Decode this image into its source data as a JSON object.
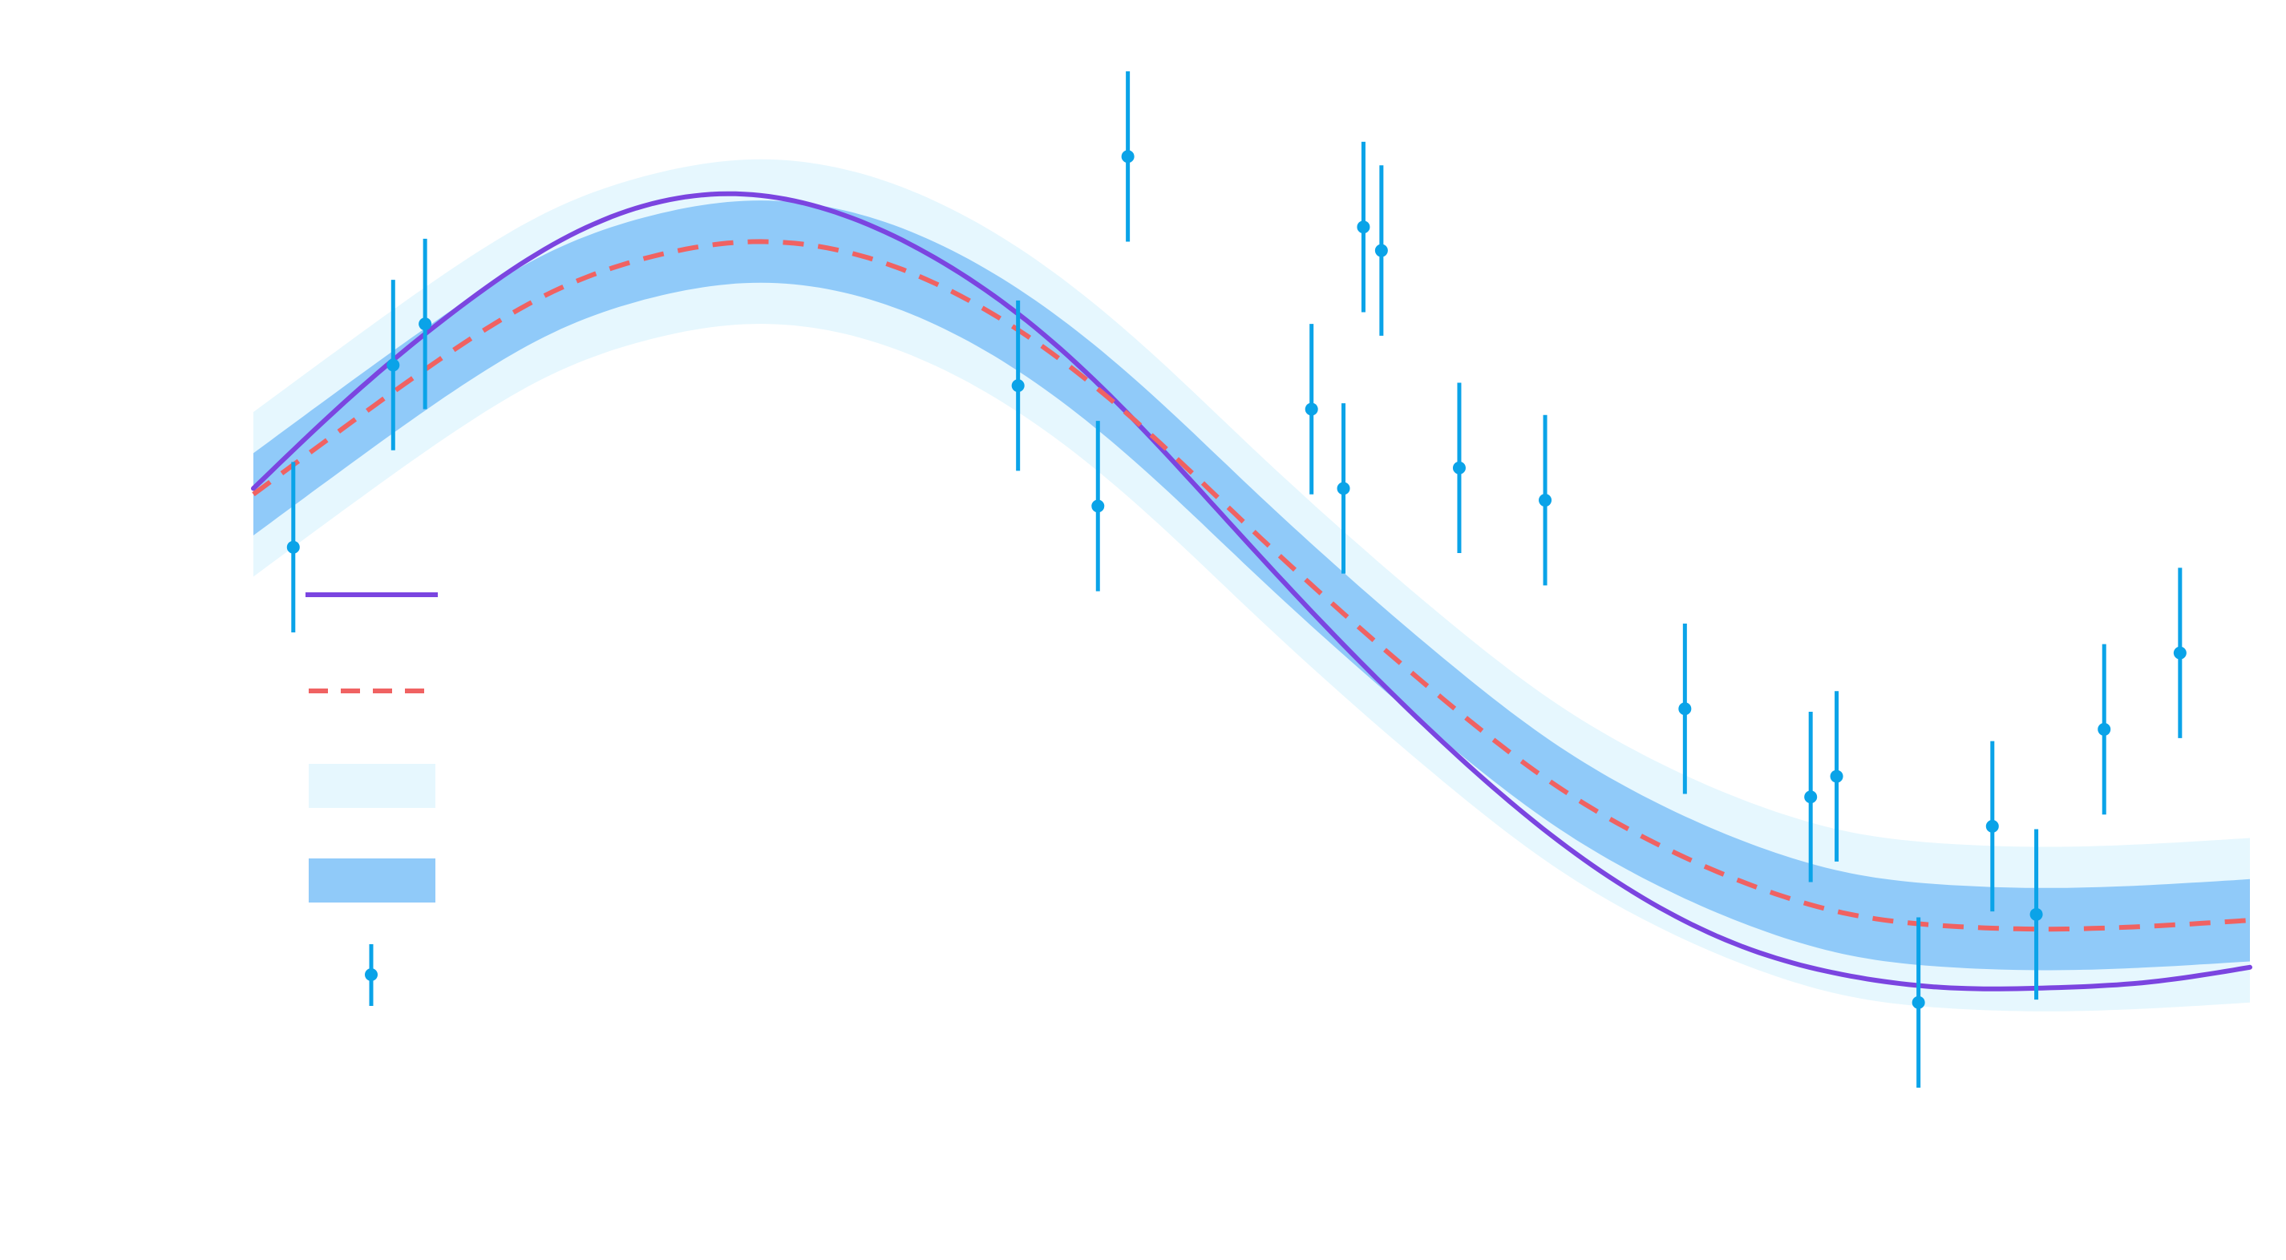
{
  "chart_data": {
    "type": "line",
    "title": "",
    "xlabel": "",
    "ylabel": "",
    "xlim": [
      0,
      10
    ],
    "ylim": [
      -2.4,
      1.6
    ],
    "grid": false,
    "legend": {
      "placement": "middle-left",
      "entries": [
        "",
        "",
        "",
        "",
        ""
      ]
    },
    "true_function": {
      "x": [
        0.0,
        0.5,
        1.0,
        1.5,
        2.0,
        2.5,
        3.0,
        3.5,
        4.0,
        4.5,
        5.0,
        5.5,
        6.0,
        6.5,
        7.0,
        7.5,
        8.0,
        8.5,
        9.0,
        9.5,
        10.0
      ],
      "y": [
        0.0,
        0.32,
        0.6,
        0.83,
        0.97,
        1.0,
        0.92,
        0.75,
        0.5,
        0.17,
        -0.2,
        -0.56,
        -0.89,
        -1.18,
        -1.41,
        -1.57,
        -1.66,
        -1.7,
        -1.7,
        -1.68,
        -1.63
      ],
      "color": "#7B45E0"
    },
    "posterior_mean": {
      "x": [
        0.0,
        0.5,
        1.0,
        1.5,
        2.0,
        2.5,
        3.0,
        3.5,
        4.0,
        4.5,
        5.0,
        5.5,
        6.0,
        6.5,
        7.0,
        7.5,
        8.0,
        8.5,
        9.0,
        9.5,
        10.0
      ],
      "y": [
        -0.02,
        0.23,
        0.47,
        0.67,
        0.79,
        0.84,
        0.8,
        0.67,
        0.46,
        0.18,
        -0.14,
        -0.45,
        -0.74,
        -1.0,
        -1.2,
        -1.35,
        -1.45,
        -1.49,
        -1.5,
        -1.49,
        -1.47
      ],
      "color": "#F06262"
    },
    "band_1sigma": {
      "half_width": 0.14,
      "color": "#90CAF9"
    },
    "band_2sigma": {
      "half_width": 0.28,
      "color": "#E6F7FE"
    },
    "observations": {
      "x": [
        0.2,
        0.7,
        0.86,
        3.83,
        4.23,
        4.38,
        5.3,
        5.46,
        5.56,
        5.65,
        6.04,
        6.47,
        7.17,
        7.8,
        7.93,
        8.34,
        8.71,
        8.93,
        9.27,
        9.65
      ],
      "y": [
        -0.2,
        0.42,
        0.56,
        0.35,
        -0.06,
        1.13,
        0.27,
        0.0,
        0.89,
        0.81,
        0.07,
        -0.04,
        -0.75,
        -1.05,
        -0.98,
        -1.75,
        -1.15,
        -1.45,
        -0.82,
        -0.56
      ],
      "error": [
        0.29,
        0.29,
        0.29,
        0.29,
        0.29,
        0.29,
        0.29,
        0.29,
        0.29,
        0.29,
        0.29,
        0.29,
        0.29,
        0.29,
        0.29,
        0.29,
        0.29,
        0.29,
        0.29,
        0.29
      ],
      "color": "#0AA3E8"
    }
  }
}
